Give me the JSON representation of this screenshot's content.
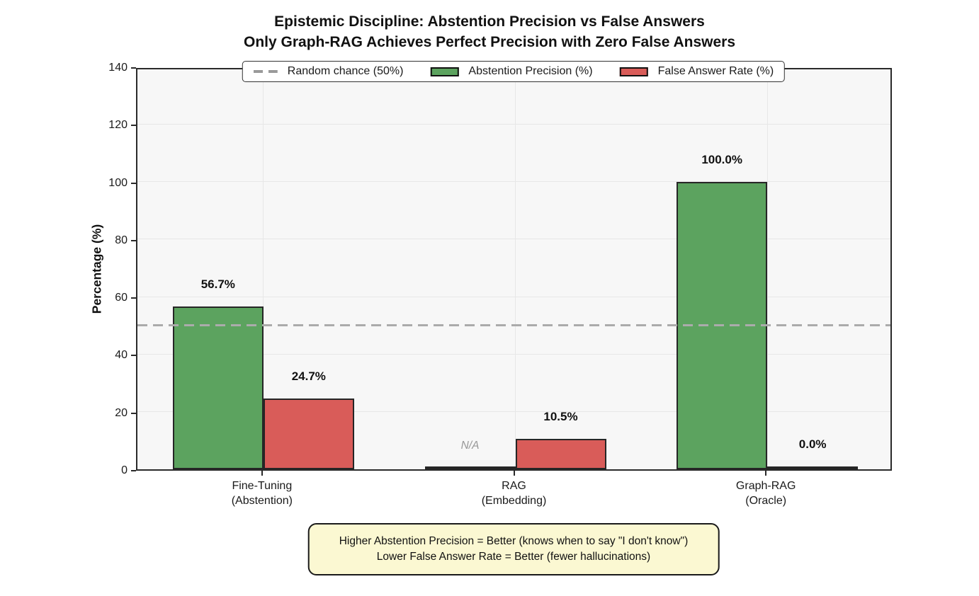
{
  "title": {
    "line1": "Epistemic Discipline: Abstention Precision vs False Answers",
    "line2": "Only Graph-RAG Achieves Perfect Precision with Zero False Answers"
  },
  "chart_data": {
    "type": "bar",
    "categories": [
      {
        "line1": "Fine-Tuning",
        "line2": "(Abstention)"
      },
      {
        "line1": "RAG",
        "line2": "(Embedding)"
      },
      {
        "line1": "Graph-RAG",
        "line2": "(Oracle)"
      }
    ],
    "series": [
      {
        "name": "Abstention Precision (%)",
        "color": "#5ca35f",
        "values": [
          56.7,
          null,
          100.0
        ],
        "value_labels": [
          "56.7%",
          null,
          "100.0%"
        ]
      },
      {
        "name": "False Answer Rate (%)",
        "color": "#d95c59",
        "values": [
          24.7,
          10.5,
          0.0
        ],
        "value_labels": [
          "24.7%",
          "10.5%",
          "0.0%"
        ]
      }
    ],
    "annotations": [
      {
        "text": "N/A",
        "category_index": 1,
        "series_index": 0
      }
    ],
    "reference_line": {
      "label": "Random chance (50%)",
      "value": 50,
      "color": "#ababab"
    },
    "ylabel": "Percentage (%)",
    "ylim": [
      0,
      140
    ],
    "yticks": [
      0,
      20,
      40,
      60,
      80,
      100,
      120,
      140
    ],
    "grid": true,
    "legend_position": "upper center",
    "bar_edge_color": "#262626",
    "plot_bg_color": "#f7f7f7"
  },
  "note_box": {
    "line1": "Higher Abstention Precision = Better (knows when to say \"I don't know\")",
    "line2": "Lower False Answer Rate = Better (fewer hallucinations)"
  }
}
